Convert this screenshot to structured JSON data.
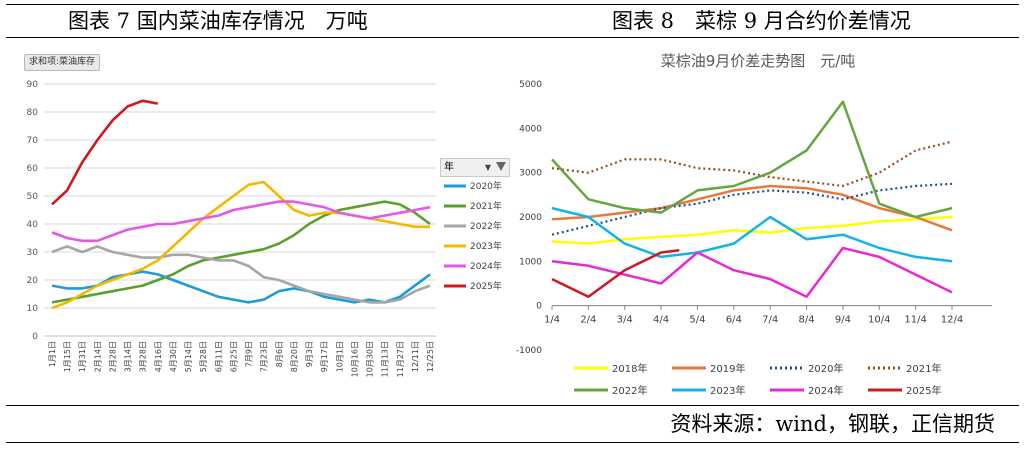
{
  "header": {
    "left_title": "图表 7 国内菜油库存情况　万吨",
    "right_title": "图表 8　菜棕 9 月合约价差情况"
  },
  "footer": {
    "source": "资料来源：wind，钢联，正信期货"
  },
  "chart_data": [
    {
      "type": "line",
      "title": "",
      "pivot_button": "求和项:菜油库存",
      "legend_header": "年",
      "ylim": [
        0,
        90
      ],
      "yticks": [
        0,
        10,
        20,
        30,
        40,
        50,
        60,
        70,
        80,
        90
      ],
      "x_tick_labels": [
        "1月1日",
        "1月15日",
        "1月31日",
        "2月14日",
        "2月28日",
        "3月14日",
        "3月28日",
        "4月16日",
        "4月30日",
        "5月14日",
        "5月28日",
        "6月11日",
        "6月25日",
        "7月9日",
        "7月23日",
        "8月6日",
        "8月20日",
        "9月3日",
        "9月17日",
        "10月1日",
        "10月16日",
        "10月30日",
        "11月13日",
        "11月27日",
        "12/11日",
        "12/25日"
      ],
      "legend_position": "right",
      "grid": true,
      "series": [
        {
          "name": "2020年",
          "color": "#1f9bd7",
          "x": [
            0,
            1,
            2,
            3,
            4,
            5,
            6,
            7,
            8,
            9,
            10,
            11,
            12,
            13,
            14,
            15,
            16,
            17,
            18,
            19,
            20,
            21,
            22,
            23,
            24,
            25
          ],
          "values": [
            18,
            17,
            17,
            18,
            21,
            22,
            23,
            22,
            20,
            18,
            16,
            14,
            13,
            12,
            13,
            16,
            17,
            16,
            14,
            13,
            12,
            13,
            12,
            14,
            18,
            22
          ]
        },
        {
          "name": "2021年",
          "color": "#5aa02c",
          "x": [
            0,
            1,
            2,
            3,
            4,
            5,
            6,
            7,
            8,
            9,
            10,
            11,
            12,
            13,
            14,
            15,
            16,
            17,
            18,
            19,
            20,
            21,
            22,
            23,
            24,
            25
          ],
          "values": [
            12,
            13,
            14,
            15,
            16,
            17,
            18,
            20,
            22,
            25,
            27,
            28,
            29,
            30,
            31,
            33,
            36,
            40,
            43,
            45,
            46,
            47,
            48,
            47,
            44,
            40
          ]
        },
        {
          "name": "2022年",
          "color": "#a6a6a6",
          "x": [
            0,
            1,
            2,
            3,
            4,
            5,
            6,
            7,
            8,
            9,
            10,
            11,
            12,
            13,
            14,
            15,
            16,
            17,
            18,
            19,
            20,
            21,
            22,
            23,
            24,
            25
          ],
          "values": [
            30,
            32,
            30,
            32,
            30,
            29,
            28,
            28,
            29,
            29,
            28,
            27,
            27,
            25,
            21,
            20,
            18,
            16,
            15,
            14,
            13,
            12,
            12,
            13,
            16,
            18
          ]
        },
        {
          "name": "2023年",
          "color": "#f5b800",
          "x": [
            0,
            1,
            2,
            3,
            4,
            5,
            6,
            7,
            8,
            9,
            10,
            11,
            12,
            13,
            14,
            15,
            16,
            17,
            18,
            19,
            20,
            21,
            22,
            23,
            24,
            25
          ],
          "values": [
            10,
            12,
            15,
            18,
            20,
            22,
            24,
            27,
            32,
            37,
            42,
            46,
            50,
            54,
            55,
            50,
            45,
            43,
            44,
            44,
            43,
            42,
            41,
            40,
            39,
            39
          ]
        },
        {
          "name": "2024年",
          "color": "#e45ae6",
          "x": [
            0,
            1,
            2,
            3,
            4,
            5,
            6,
            7,
            8,
            9,
            10,
            11,
            12,
            13,
            14,
            15,
            16,
            17,
            18,
            19,
            20,
            21,
            22,
            23,
            24,
            25
          ],
          "values": [
            37,
            35,
            34,
            34,
            36,
            38,
            39,
            40,
            40,
            41,
            42,
            43,
            45,
            46,
            47,
            48,
            48,
            47,
            46,
            44,
            43,
            42,
            43,
            44,
            45,
            46
          ]
        },
        {
          "name": "2025年",
          "color": "#d0191c",
          "x": [
            0,
            1,
            2,
            3,
            4,
            5,
            6,
            7
          ],
          "values": [
            47,
            52,
            62,
            70,
            77,
            82,
            84,
            83
          ]
        }
      ]
    },
    {
      "type": "line",
      "title": "菜棕油9月价差走势图　元/吨",
      "ylim": [
        -1000,
        5000
      ],
      "yticks": [
        -1000,
        0,
        1000,
        2000,
        3000,
        4000,
        5000
      ],
      "x_tick_labels": [
        "1/4",
        "2/4",
        "3/4",
        "4/4",
        "5/4",
        "6/4",
        "7/4",
        "8/4",
        "9/4",
        "10/4",
        "11/4",
        "12/4"
      ],
      "legend_position": "bottom",
      "grid": false,
      "series": [
        {
          "name": "2018年",
          "color": "#ffff00",
          "dash": "solid",
          "x": [
            1,
            2,
            3,
            4,
            5,
            6,
            7,
            8,
            9,
            10,
            11,
            12
          ],
          "values": [
            1450,
            1400,
            1500,
            1550,
            1600,
            1700,
            1650,
            1750,
            1800,
            1900,
            1950,
            2000
          ]
        },
        {
          "name": "2019年",
          "color": "#e9783c",
          "dash": "solid",
          "x": [
            1,
            2,
            3,
            4,
            5,
            6,
            7,
            8,
            9,
            10,
            11,
            12
          ],
          "values": [
            1950,
            2000,
            2100,
            2200,
            2400,
            2600,
            2700,
            2650,
            2500,
            2200,
            2000,
            1700
          ]
        },
        {
          "name": "2020年",
          "color": "#1f4e8c",
          "dash": "dotted",
          "x": [
            1,
            2,
            3,
            4,
            5,
            6,
            7,
            8,
            9,
            10,
            11,
            12
          ],
          "values": [
            1600,
            1800,
            2000,
            2200,
            2300,
            2500,
            2600,
            2550,
            2400,
            2600,
            2700,
            2750
          ]
        },
        {
          "name": "2021年",
          "color": "#9c4a1a",
          "dash": "dotted",
          "x": [
            1,
            2,
            3,
            4,
            5,
            6,
            7,
            8,
            9,
            10,
            11,
            12
          ],
          "values": [
            3100,
            3000,
            3300,
            3300,
            3100,
            3050,
            2900,
            2800,
            2700,
            3000,
            3500,
            3700
          ]
        },
        {
          "name": "2022年",
          "color": "#66a640",
          "dash": "solid",
          "x": [
            1,
            2,
            3,
            4,
            5,
            6,
            7,
            8,
            9,
            10,
            11,
            12
          ],
          "values": [
            3300,
            2400,
            2200,
            2100,
            2600,
            2700,
            3000,
            3500,
            4600,
            2300,
            2000,
            2200
          ]
        },
        {
          "name": "2023年",
          "color": "#14b3e6",
          "dash": "solid",
          "x": [
            1,
            2,
            3,
            4,
            5,
            6,
            7,
            8,
            9,
            10,
            11,
            12
          ],
          "values": [
            2200,
            2000,
            1400,
            1100,
            1200,
            1400,
            2000,
            1500,
            1600,
            1300,
            1100,
            1000
          ]
        },
        {
          "name": "2024年",
          "color": "#e62ad6",
          "dash": "solid",
          "x": [
            1,
            2,
            3,
            4,
            5,
            6,
            7,
            8,
            9,
            10,
            11,
            12
          ],
          "values": [
            1000,
            900,
            700,
            500,
            1200,
            800,
            600,
            200,
            1300,
            1100,
            700,
            300
          ]
        },
        {
          "name": "2025年",
          "color": "#d0191c",
          "dash": "solid",
          "x": [
            1,
            2,
            3,
            4,
            4.5
          ],
          "values": [
            600,
            200,
            800,
            1200,
            1250
          ]
        }
      ]
    }
  ]
}
